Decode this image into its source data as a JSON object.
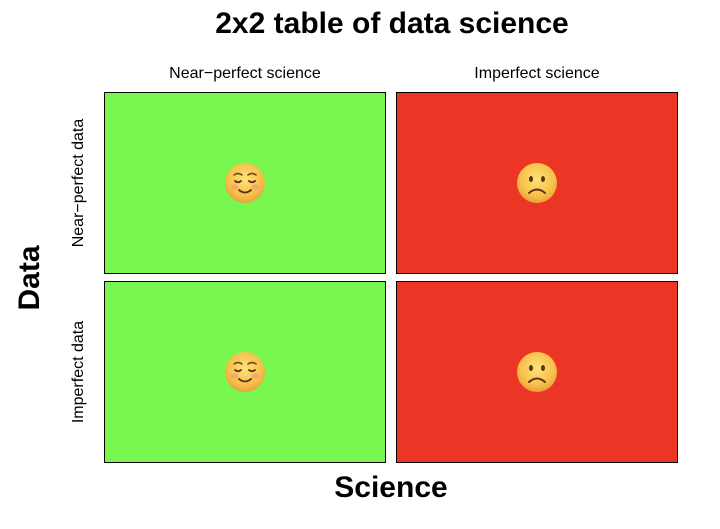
{
  "title": "2x2 table of data science",
  "xlabel": "Science",
  "ylabel": "Data",
  "columns": [
    "Near−perfect science",
    "Imperfect science"
  ],
  "rows": [
    "Near−perfect data",
    "Imperfect data"
  ],
  "cells": [
    {
      "row": "Near−perfect data",
      "column": "Near−perfect science",
      "color": "#77f74f",
      "icon": "smiling-face-icon"
    },
    {
      "row": "Near−perfect data",
      "column": "Imperfect science",
      "color": "#ec3524",
      "icon": "frowning-face-icon"
    },
    {
      "row": "Imperfect data",
      "column": "Near−perfect science",
      "color": "#77f74f",
      "icon": "smiling-face-icon"
    },
    {
      "row": "Imperfect data",
      "column": "Imperfect science",
      "color": "#ec3524",
      "icon": "frowning-face-icon"
    }
  ]
}
